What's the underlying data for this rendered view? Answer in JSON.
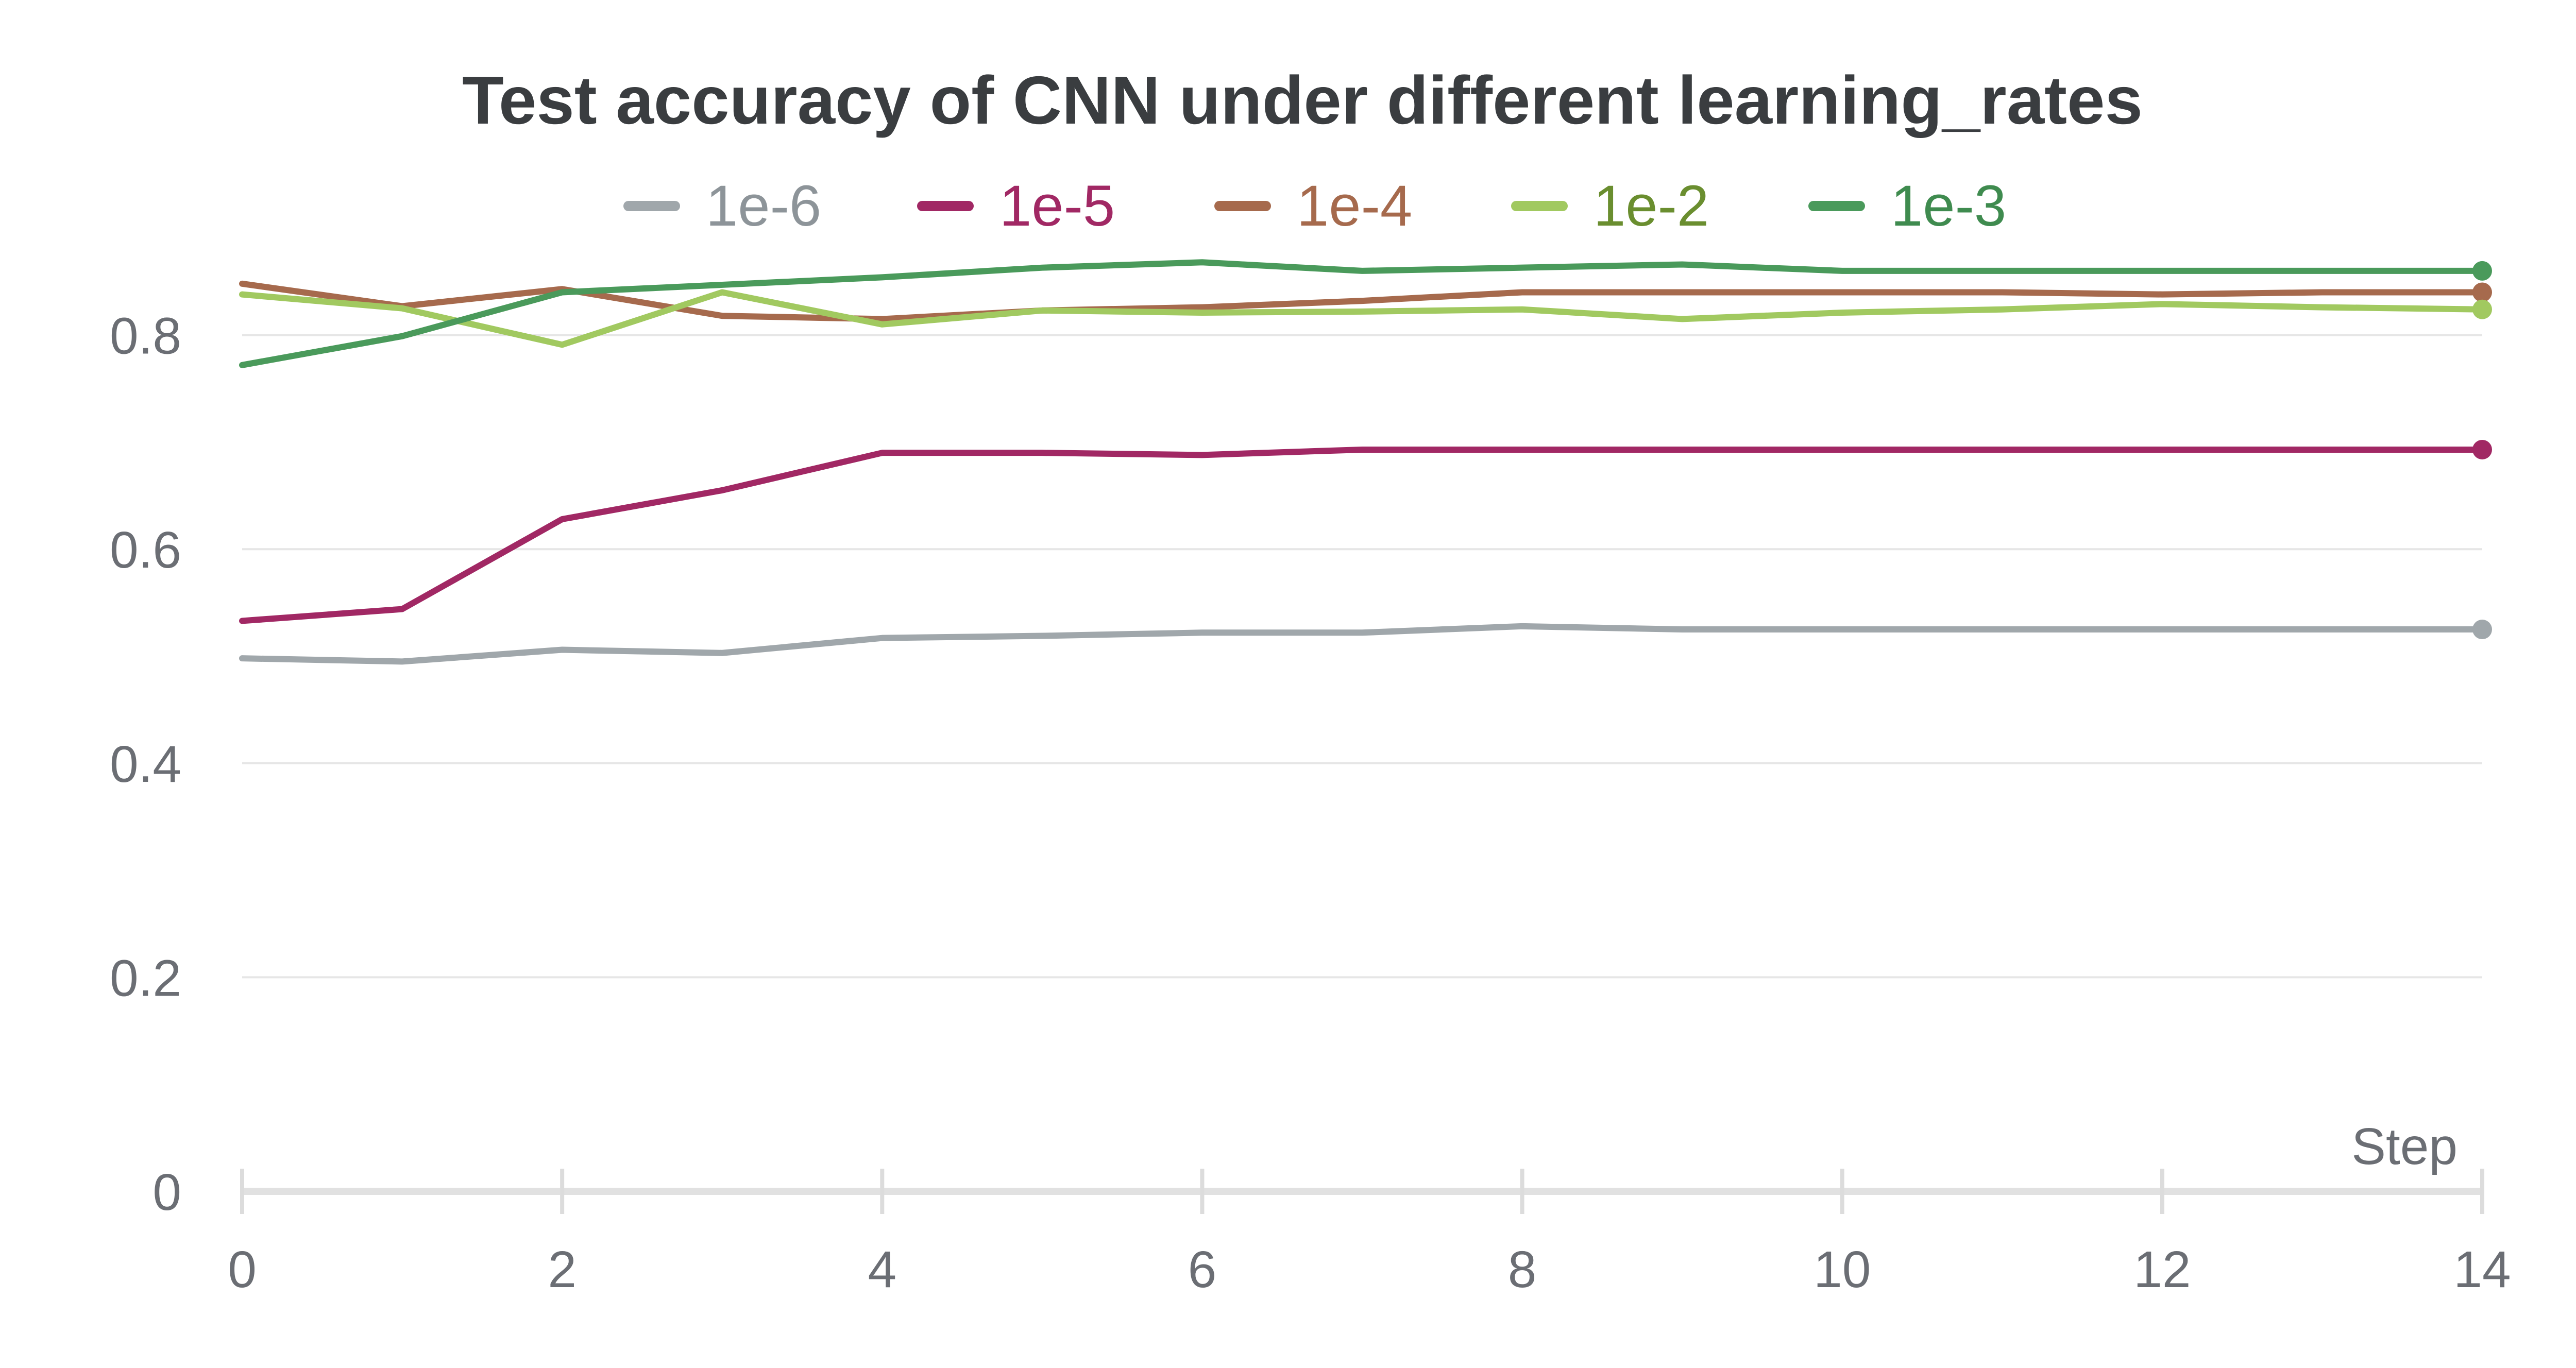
{
  "chart_data": {
    "type": "line",
    "title": "Test accuracy of CNN under different learning_rates",
    "xlabel": "Step",
    "ylabel": "",
    "xlim": [
      0,
      14
    ],
    "ylim": [
      0,
      0.9
    ],
    "xticks": [
      0,
      2,
      4,
      6,
      8,
      10,
      12,
      14
    ],
    "yticks": [
      0,
      0.2,
      0.4,
      0.6,
      0.8
    ],
    "ytick_labels": [
      "0",
      "0.2",
      "0.4",
      "0.6",
      "0.8"
    ],
    "grid": true,
    "legend_position": "top-center",
    "x": [
      0,
      1,
      2,
      3,
      4,
      5,
      6,
      7,
      8,
      9,
      10,
      11,
      12,
      13,
      14
    ],
    "series": [
      {
        "name": "1e-6",
        "color": "#a0a7ab",
        "text_color": "#8d9499",
        "values": [
          0.498,
          0.495,
          0.506,
          0.503,
          0.517,
          0.519,
          0.522,
          0.522,
          0.528,
          0.525,
          0.525,
          0.525,
          0.525,
          0.525,
          0.525
        ]
      },
      {
        "name": "1e-5",
        "color": "#a12864",
        "text_color": "#a12864",
        "values": [
          0.533,
          0.544,
          0.628,
          0.655,
          0.69,
          0.69,
          0.688,
          0.693,
          0.693,
          0.693,
          0.693,
          0.693,
          0.693,
          0.693,
          0.693
        ]
      },
      {
        "name": "1e-4",
        "color": "#a66a4d",
        "text_color": "#a66a4d",
        "values": [
          0.848,
          0.827,
          0.843,
          0.818,
          0.815,
          0.823,
          0.826,
          0.832,
          0.84,
          0.84,
          0.84,
          0.84,
          0.838,
          0.84,
          0.84
        ]
      },
      {
        "name": "1e-2",
        "color": "#a1c960",
        "text_color": "#6a8e2f",
        "values": [
          0.838,
          0.825,
          0.791,
          0.84,
          0.81,
          0.823,
          0.821,
          0.822,
          0.824,
          0.815,
          0.821,
          0.824,
          0.829,
          0.826,
          0.824
        ]
      },
      {
        "name": "1e-3",
        "color": "#4a9a5b",
        "text_color": "#3f8b4f",
        "values": [
          0.772,
          0.799,
          0.84,
          0.847,
          0.854,
          0.863,
          0.868,
          0.86,
          0.863,
          0.866,
          0.86,
          0.86,
          0.86,
          0.86,
          0.86
        ]
      }
    ]
  }
}
